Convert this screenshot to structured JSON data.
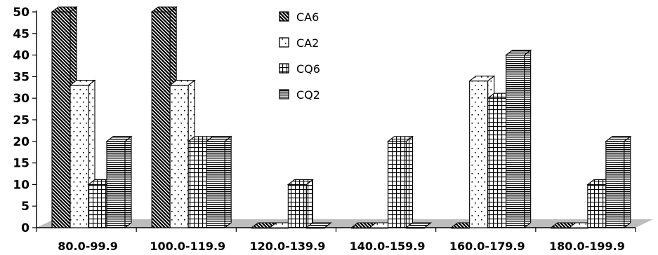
{
  "chart_data": {
    "type": "bar",
    "categories": [
      "80.0-99.9",
      "100.0-119.9",
      "120.0-139.9",
      "140.0-159.9",
      "160.0-179.9",
      "180.0-199.9"
    ],
    "series": [
      {
        "name": "CA6",
        "values": [
          50,
          50,
          0,
          0,
          0,
          0
        ]
      },
      {
        "name": "CA2",
        "values": [
          33,
          33,
          0,
          0,
          34,
          0
        ]
      },
      {
        "name": "CQ6",
        "values": [
          10,
          20,
          10,
          20,
          30,
          10
        ]
      },
      {
        "name": "CQ2",
        "values": [
          20,
          20,
          0,
          0,
          40,
          20
        ]
      }
    ],
    "yticks": [
      0,
      5,
      10,
      15,
      20,
      25,
      30,
      35,
      40,
      45,
      50
    ],
    "ylim": [
      0,
      50
    ],
    "title": "",
    "xlabel": "",
    "ylabel": "",
    "legend_position": "top-center",
    "grid": false,
    "three_d": true
  }
}
